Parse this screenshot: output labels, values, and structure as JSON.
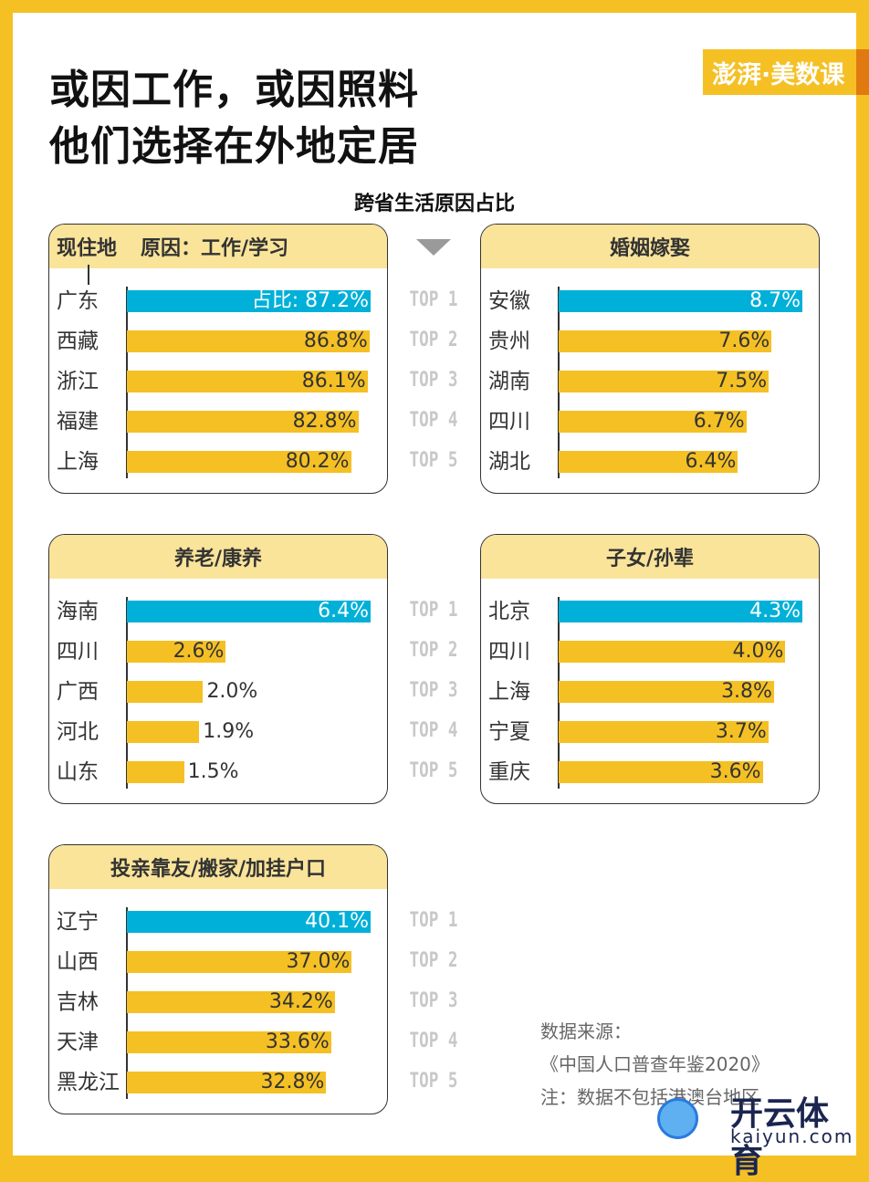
{
  "title": [
    "或因工作，或因照料",
    "他们选择在外地定居"
  ],
  "logo": "澎湃·美数课",
  "chart_data": {
    "type": "bar",
    "title": "跨省生活原因占比",
    "header_labels": {
      "location": "现住地",
      "reason_prefix": "原因："
    },
    "rank_labels": [
      "TOP 1",
      "TOP 2",
      "TOP 3",
      "TOP 4",
      "TOP 5"
    ],
    "value_prefix": "占比: ",
    "colors": {
      "top": "#00B0D8",
      "other": "#F5C024",
      "header": "#FAE49A"
    },
    "panels": [
      {
        "name": "工作/学习",
        "categories": [
          "广东",
          "西藏",
          "浙江",
          "福建",
          "上海"
        ],
        "values": [
          87.2,
          86.8,
          86.1,
          82.8,
          80.2
        ]
      },
      {
        "name": "婚姻嫁娶",
        "categories": [
          "安徽",
          "贵州",
          "湖南",
          "四川",
          "湖北"
        ],
        "values": [
          8.7,
          7.6,
          7.5,
          6.7,
          6.4
        ]
      },
      {
        "name": "养老/康养",
        "categories": [
          "海南",
          "四川",
          "广西",
          "河北",
          "山东"
        ],
        "values": [
          6.4,
          2.6,
          2.0,
          1.9,
          1.5
        ]
      },
      {
        "name": "子女/孙辈",
        "categories": [
          "北京",
          "四川",
          "上海",
          "宁夏",
          "重庆"
        ],
        "values": [
          4.3,
          4.0,
          3.8,
          3.7,
          3.6
        ]
      },
      {
        "name": "投亲靠友/搬家/加挂户口",
        "categories": [
          "辽宁",
          "山西",
          "吉林",
          "天津",
          "黑龙江"
        ],
        "values": [
          40.1,
          37.0,
          34.2,
          33.6,
          32.8
        ]
      }
    ]
  },
  "source": {
    "label": "数据来源：",
    "book": "《中国人口普查年鉴2020》",
    "note": "注：数据不包括港澳台地区"
  },
  "watermark": {
    "cn": "开云体育",
    "en": "kaiyun.com"
  }
}
